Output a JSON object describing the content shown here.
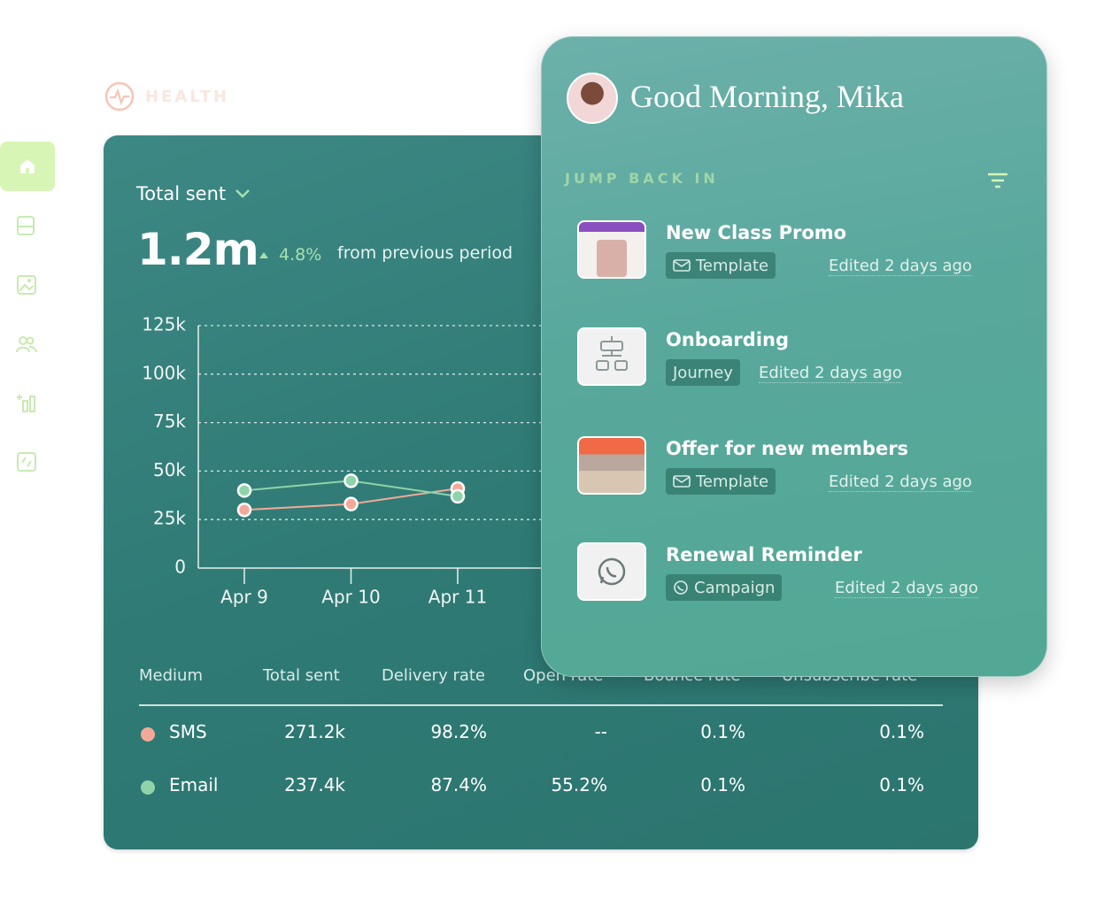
{
  "brand": "HEALTH",
  "dashboard": {
    "metric": "Total sent",
    "total": "1.2m",
    "change": "4.8%",
    "change_note": "from previous period",
    "chart": {
      "type": "line",
      "categories": [
        "Apr 9",
        "Apr 10",
        "Apr 11"
      ],
      "series": [
        {
          "color": "#f4a998",
          "values": [
            30000,
            33000,
            41000
          ]
        },
        {
          "color": "#8fd3a8",
          "values": [
            40000,
            45000,
            37000
          ]
        }
      ],
      "ylim": [
        0,
        125000
      ],
      "yticks": [
        0,
        {
          "value": 25000,
          "label": "25k"
        },
        {
          "value": 50000,
          "label": "50k"
        },
        {
          "value": 75000,
          "label": "75k"
        },
        {
          "value": 100000,
          "label": "100k"
        },
        {
          "value": 125000,
          "label": "125k"
        }
      ],
      "grid": true
    },
    "table": {
      "columns": [
        "Medium",
        "Total sent",
        "Delivery rate",
        "Open rate",
        "Bounce rate",
        "Unsubscribe rate"
      ],
      "rows": [
        [
          "SMS",
          "271.2k",
          "98.2%",
          "--",
          "0.1%",
          "0.1%"
        ],
        [
          "Email",
          "237.4k",
          "87.4%",
          "55.2%",
          "0.1%",
          "0.1%"
        ]
      ]
    }
  },
  "panel": {
    "greeting": "Good Morning, Mika",
    "section": "JUMP BACK IN",
    "items": [
      {
        "title": "New Class Promo",
        "tag": "Template",
        "edited": "Edited 2 days ago"
      },
      {
        "title": "Onboarding",
        "tag": "Journey",
        "edited": "Edited 2 days ago"
      },
      {
        "title": "Offer for new members",
        "tag": "Template",
        "edited": "Edited 2 days ago"
      },
      {
        "title": "Renewal Reminder",
        "tag": "Campaign",
        "edited": "Edited 2 days ago"
      }
    ]
  }
}
